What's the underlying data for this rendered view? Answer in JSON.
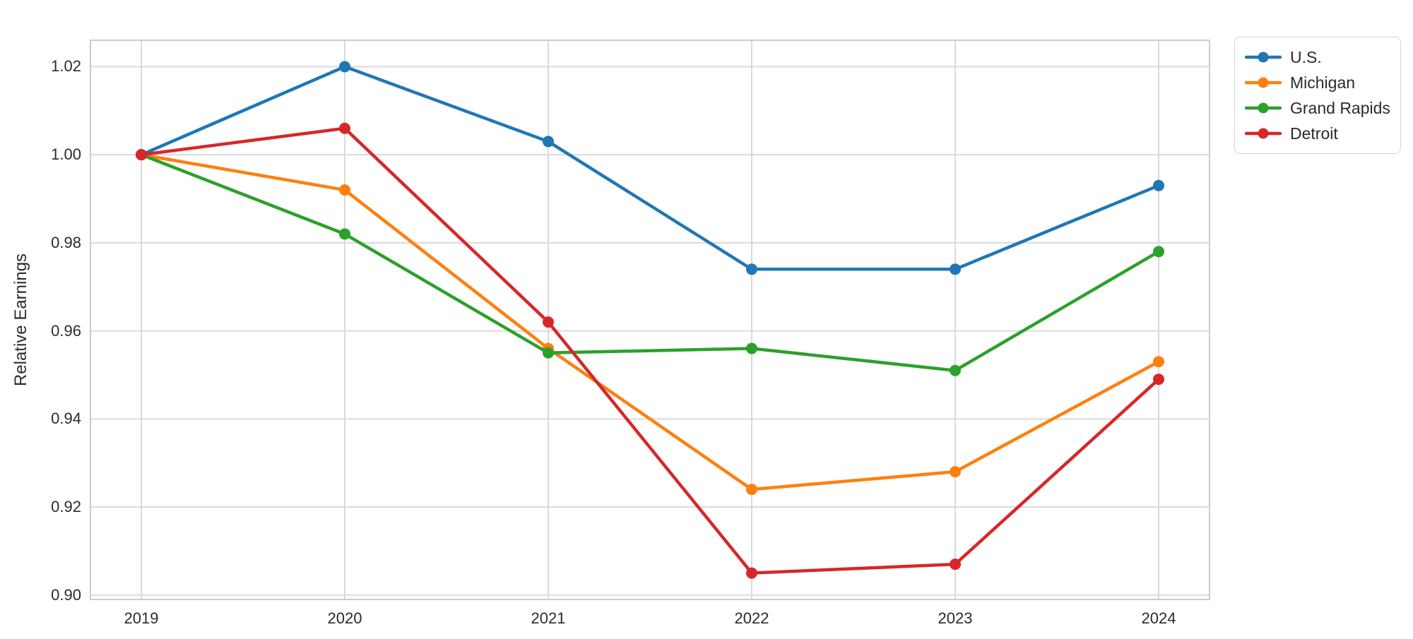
{
  "figure": {
    "ylabel": "Relative Earnings",
    "background_color": "#ffffff",
    "grid_color": "#dadada",
    "frame_color": "#cccccc",
    "tick_label_color": "#2b2b2b"
  },
  "chart_data": {
    "type": "line",
    "title": "",
    "xlabel": "",
    "ylabel": "Relative Earnings",
    "x": [
      2019,
      2020,
      2021,
      2022,
      2023,
      2024
    ],
    "xtick_labels": [
      "2019",
      "2020",
      "2021",
      "2022",
      "2023",
      "2024"
    ],
    "yticks": [
      0.9,
      0.92,
      0.94,
      0.96,
      0.98,
      1.0,
      1.02
    ],
    "ytick_labels": [
      "0.90",
      "0.92",
      "0.94",
      "0.96",
      "0.98",
      "1.00",
      "1.02"
    ],
    "xlim": [
      2018.75,
      2024.25
    ],
    "ylim": [
      0.899,
      1.026
    ],
    "grid": true,
    "marker": "circle",
    "legend_position": "outside-upper-right",
    "series": [
      {
        "name": "U.S.",
        "color": "#1f77b4",
        "values": [
          1.0,
          1.02,
          1.003,
          0.974,
          0.974,
          0.993
        ]
      },
      {
        "name": "Michigan",
        "color": "#ff7f0e",
        "values": [
          1.0,
          0.992,
          0.956,
          0.924,
          0.928,
          0.953
        ]
      },
      {
        "name": "Grand Rapids",
        "color": "#2ca02c",
        "values": [
          1.0,
          0.982,
          0.955,
          0.956,
          0.951,
          0.978
        ]
      },
      {
        "name": "Detroit",
        "color": "#d62728",
        "values": [
          1.0,
          1.006,
          0.962,
          0.905,
          0.907,
          0.949
        ]
      }
    ]
  }
}
